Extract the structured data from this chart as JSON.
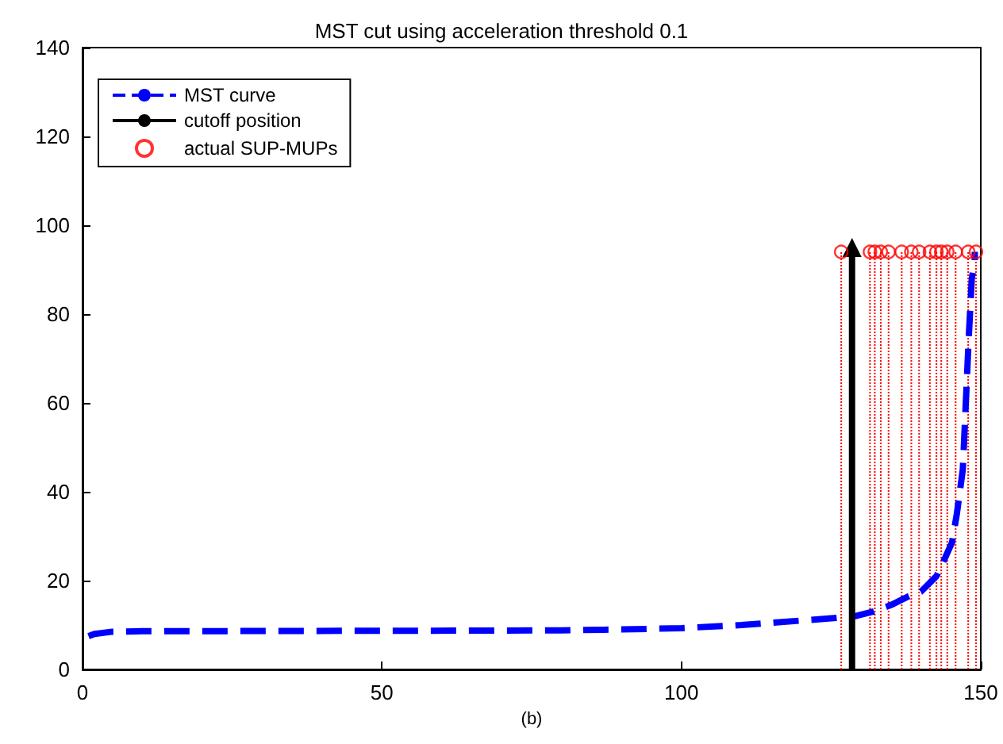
{
  "chart_data": {
    "type": "line",
    "title": "MST cut using acceleration threshold 0.1",
    "xlabel": "(b)",
    "xlim": [
      0,
      150
    ],
    "xticks": [
      0,
      50,
      100,
      150
    ],
    "ylim": [
      0,
      140
    ],
    "yticks": [
      0,
      20,
      40,
      60,
      80,
      100,
      120,
      140
    ],
    "grid": false,
    "legend": "top left",
    "series": [
      {
        "name": "MST curve",
        "color": "#0000ff",
        "line_style": "dashed",
        "marker": "none",
        "x": [
          1,
          2,
          5,
          10,
          50,
          80,
          90,
          100,
          110,
          120,
          125,
          129,
          132,
          135,
          138,
          140,
          142.6,
          144,
          145.2,
          146,
          147,
          147.5,
          148,
          148.5,
          149,
          149
        ],
        "values": [
          7.5,
          8,
          8.5,
          8.6,
          8.7,
          8.8,
          9,
          9.3,
          10,
          11,
          11.5,
          12,
          13,
          14.5,
          16.5,
          17.5,
          21,
          25,
          28.6,
          35,
          45,
          60,
          75,
          88,
          92,
          94
        ]
      },
      {
        "name": "cutoff position",
        "type": "line",
        "color": "#000000",
        "line_style": "solid",
        "marker": "triangle",
        "x": [
          128.5,
          128.5
        ],
        "values": [
          0,
          95
        ]
      },
      {
        "name": "actual SUP-MUPs",
        "type": "lollipop",
        "color": "#ff0000",
        "line_style": "dotted",
        "marker": "circle",
        "x": [
          126.7,
          131.5,
          132.3,
          133.3,
          134.6,
          136.8,
          138.4,
          139.7,
          141.5,
          142.6,
          143.4,
          144.4,
          145.8,
          147.9,
          149.2
        ],
        "values": [
          94,
          94,
          94,
          94,
          94,
          94,
          94,
          94,
          94,
          94,
          94,
          94,
          94,
          94,
          94
        ]
      }
    ]
  }
}
